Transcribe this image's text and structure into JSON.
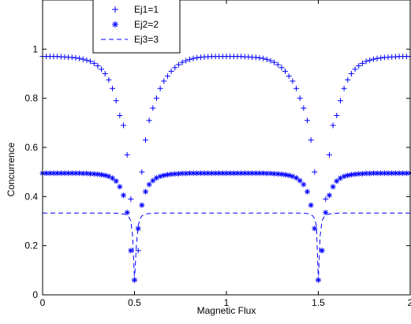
{
  "chart_data": {
    "type": "scatter",
    "title": "",
    "xlabel": "Magnetic Flux",
    "ylabel": "Concurrence",
    "xlim": [
      0,
      2
    ],
    "ylim": [
      0,
      1.2
    ],
    "xticks": [
      "0",
      "0.5",
      "1",
      "1.5",
      "2"
    ],
    "yticks": [
      "0",
      "0.2",
      "0.4",
      "0.6",
      "0.8",
      "1"
    ],
    "grid": false,
    "legend_placement": "top-left",
    "color": "#0000ff",
    "series": [
      {
        "name": "Ej1=1",
        "marker": "plus",
        "x": [
          0,
          0.02,
          0.04,
          0.06,
          0.08,
          0.1,
          0.12,
          0.14,
          0.16,
          0.18,
          0.2,
          0.22,
          0.24,
          0.26,
          0.28,
          0.3,
          0.32,
          0.34,
          0.36,
          0.38,
          0.4,
          0.42,
          0.44,
          0.46,
          0.48,
          0.5,
          0.52,
          0.54,
          0.56,
          0.58,
          0.6,
          0.62,
          0.64,
          0.66,
          0.68,
          0.7,
          0.72,
          0.74,
          0.76,
          0.78,
          0.8,
          0.82,
          0.84,
          0.86,
          0.88,
          0.9,
          0.92,
          0.94,
          0.96,
          0.98,
          1,
          1.02,
          1.04,
          1.06,
          1.08,
          1.1,
          1.12,
          1.14,
          1.16,
          1.18,
          1.2,
          1.22,
          1.24,
          1.26,
          1.28,
          1.3,
          1.32,
          1.34,
          1.36,
          1.38,
          1.4,
          1.42,
          1.44,
          1.46,
          1.48,
          1.5,
          1.52,
          1.54,
          1.56,
          1.58,
          1.6,
          1.62,
          1.64,
          1.66,
          1.68,
          1.7,
          1.72,
          1.74,
          1.76,
          1.78,
          1.8,
          1.82,
          1.84,
          1.86,
          1.88,
          1.9,
          1.92,
          1.94,
          1.96,
          1.98,
          2
        ],
        "y": [
          0.97,
          0.97,
          0.97,
          0.97,
          0.97,
          0.969,
          0.968,
          0.967,
          0.966,
          0.964,
          0.962,
          0.959,
          0.955,
          0.95,
          0.942,
          0.932,
          0.918,
          0.9,
          0.875,
          0.84,
          0.79,
          0.73,
          0.69,
          0.57,
          0.39,
          0.06,
          0.18,
          0.5,
          0.63,
          0.71,
          0.76,
          0.8,
          0.84,
          0.87,
          0.89,
          0.91,
          0.925,
          0.937,
          0.946,
          0.953,
          0.958,
          0.962,
          0.965,
          0.967,
          0.968,
          0.969,
          0.97,
          0.97,
          0.97,
          0.97,
          0.97,
          0.97,
          0.97,
          0.97,
          0.97,
          0.969,
          0.968,
          0.967,
          0.966,
          0.964,
          0.962,
          0.958,
          0.953,
          0.946,
          0.937,
          0.925,
          0.91,
          0.89,
          0.87,
          0.84,
          0.8,
          0.76,
          0.71,
          0.63,
          0.5,
          0.06,
          0.18,
          0.39,
          0.57,
          0.69,
          0.73,
          0.79,
          0.84,
          0.875,
          0.9,
          0.918,
          0.932,
          0.942,
          0.95,
          0.955,
          0.959,
          0.962,
          0.964,
          0.966,
          0.967,
          0.968,
          0.969,
          0.97,
          0.97,
          0.97,
          0.97
        ]
      },
      {
        "name": "Ej2=2",
        "marker": "asterisk",
        "x": [
          0,
          0.02,
          0.04,
          0.06,
          0.08,
          0.1,
          0.12,
          0.14,
          0.16,
          0.18,
          0.2,
          0.22,
          0.24,
          0.26,
          0.28,
          0.3,
          0.32,
          0.34,
          0.36,
          0.38,
          0.4,
          0.42,
          0.44,
          0.46,
          0.48,
          0.5,
          0.52,
          0.54,
          0.56,
          0.58,
          0.6,
          0.62,
          0.64,
          0.66,
          0.68,
          0.7,
          0.72,
          0.74,
          0.76,
          0.78,
          0.8,
          0.82,
          0.84,
          0.86,
          0.88,
          0.9,
          0.92,
          0.94,
          0.96,
          0.98,
          1,
          1.02,
          1.04,
          1.06,
          1.08,
          1.1,
          1.12,
          1.14,
          1.16,
          1.18,
          1.2,
          1.22,
          1.24,
          1.26,
          1.28,
          1.3,
          1.32,
          1.34,
          1.36,
          1.38,
          1.4,
          1.42,
          1.44,
          1.46,
          1.48,
          1.5,
          1.52,
          1.54,
          1.56,
          1.58,
          1.6,
          1.62,
          1.64,
          1.66,
          1.68,
          1.7,
          1.72,
          1.74,
          1.76,
          1.78,
          1.8,
          1.82,
          1.84,
          1.86,
          1.88,
          1.9,
          1.92,
          1.94,
          1.96,
          1.98,
          2
        ],
        "y": [
          0.495,
          0.495,
          0.495,
          0.495,
          0.495,
          0.495,
          0.495,
          0.495,
          0.495,
          0.495,
          0.495,
          0.494,
          0.494,
          0.493,
          0.492,
          0.491,
          0.489,
          0.486,
          0.482,
          0.475,
          0.463,
          0.44,
          0.405,
          0.335,
          0.18,
          0.06,
          0.27,
          0.365,
          0.42,
          0.449,
          0.465,
          0.476,
          0.482,
          0.486,
          0.489,
          0.491,
          0.492,
          0.493,
          0.494,
          0.494,
          0.495,
          0.495,
          0.495,
          0.495,
          0.495,
          0.495,
          0.495,
          0.495,
          0.495,
          0.495,
          0.495,
          0.495,
          0.495,
          0.495,
          0.495,
          0.495,
          0.495,
          0.495,
          0.495,
          0.495,
          0.495,
          0.494,
          0.494,
          0.493,
          0.492,
          0.491,
          0.489,
          0.486,
          0.482,
          0.476,
          0.465,
          0.449,
          0.42,
          0.365,
          0.27,
          0.06,
          0.18,
          0.335,
          0.405,
          0.44,
          0.463,
          0.475,
          0.482,
          0.486,
          0.489,
          0.491,
          0.492,
          0.493,
          0.494,
          0.494,
          0.495,
          0.495,
          0.495,
          0.495,
          0.495,
          0.495,
          0.495,
          0.495,
          0.495,
          0.495,
          0.495
        ]
      },
      {
        "name": "Ej3=3",
        "marker": "dashed",
        "x": [
          0,
          0.05,
          0.1,
          0.15,
          0.2,
          0.25,
          0.3,
          0.35,
          0.38,
          0.4,
          0.42,
          0.44,
          0.45,
          0.46,
          0.47,
          0.48,
          0.49,
          0.5,
          0.51,
          0.52,
          0.53,
          0.54,
          0.55,
          0.56,
          0.58,
          0.6,
          0.62,
          0.65,
          0.7,
          0.8,
          0.9,
          1,
          1.1,
          1.2,
          1.3,
          1.35,
          1.38,
          1.4,
          1.42,
          1.44,
          1.45,
          1.46,
          1.47,
          1.48,
          1.49,
          1.5,
          1.51,
          1.52,
          1.53,
          1.54,
          1.55,
          1.56,
          1.58,
          1.6,
          1.62,
          1.65,
          1.7,
          1.8,
          1.9,
          2
        ],
        "y": [
          0.333,
          0.333,
          0.333,
          0.333,
          0.333,
          0.333,
          0.333,
          0.333,
          0.333,
          0.332,
          0.331,
          0.329,
          0.327,
          0.323,
          0.316,
          0.3,
          0.24,
          0.06,
          0.2,
          0.28,
          0.31,
          0.321,
          0.326,
          0.329,
          0.331,
          0.332,
          0.333,
          0.333,
          0.333,
          0.333,
          0.333,
          0.333,
          0.333,
          0.333,
          0.333,
          0.333,
          0.333,
          0.333,
          0.332,
          0.331,
          0.329,
          0.326,
          0.321,
          0.31,
          0.28,
          0.06,
          0.24,
          0.3,
          0.316,
          0.323,
          0.327,
          0.329,
          0.331,
          0.332,
          0.333,
          0.333,
          0.333,
          0.333,
          0.333,
          0.333
        ]
      }
    ]
  }
}
